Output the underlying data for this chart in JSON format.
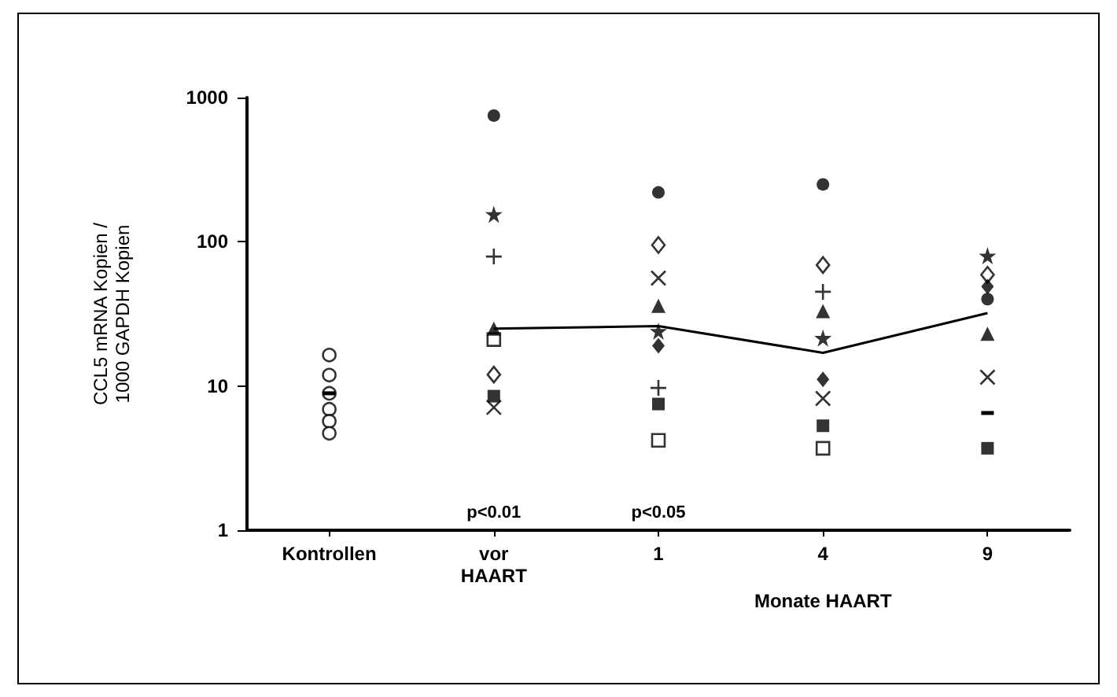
{
  "chart_data": {
    "type": "scatter",
    "ylabel": "CCL5 mRNA Kopien /\n1000 GAPDH Kopien",
    "xlabel": "Monate HAART",
    "categories": [
      "Kontrollen",
      "vor\nHAART",
      "1",
      "4",
      "9"
    ],
    "log": "y",
    "ylim": [
      1,
      1000
    ],
    "yticks": [
      1,
      10,
      100,
      1000
    ],
    "grid": false,
    "annotations": [
      "p<0.01",
      "p<0.05"
    ],
    "series": [
      {
        "color": "#ffffff",
        "marker": "circle",
        "values": [
          16.4,
          null,
          null,
          null,
          null
        ]
      },
      {
        "color": "#ffffff",
        "marker": "circle",
        "values": [
          11.9,
          null,
          null,
          null,
          null
        ]
      },
      {
        "color": "#ffffff",
        "marker": "circle",
        "values": [
          8.9,
          null,
          null,
          null,
          null
        ]
      },
      {
        "color": "#ffffff",
        "marker": "circle",
        "values": [
          6.9,
          null,
          null,
          null,
          null
        ]
      },
      {
        "color": "#ffffff",
        "marker": "circle",
        "values": [
          5.7,
          null,
          null,
          null,
          null
        ]
      },
      {
        "color": "#ffffff",
        "marker": "circle",
        "values": [
          4.7,
          null,
          null,
          null,
          null
        ]
      },
      {
        "color": "#000000",
        "marker": "circle",
        "values": [
          null,
          750,
          220,
          250,
          40
        ]
      },
      {
        "color": "#000000",
        "marker": "star",
        "values": [
          null,
          155,
          24,
          21.5,
          80
        ]
      },
      {
        "color": "#000000",
        "marker": "cross",
        "values": [
          null,
          79,
          9.7,
          45,
          null
        ]
      },
      {
        "color": "#000000",
        "marker": "triangle",
        "values": [
          null,
          25,
          36,
          33,
          23
        ]
      },
      {
        "color": "#ffffff",
        "marker": "square",
        "values": [
          null,
          21,
          4.2,
          3.7,
          null
        ]
      },
      {
        "color": "#ffffff",
        "marker": "diamond",
        "values": [
          null,
          12,
          95,
          69,
          59
        ]
      },
      {
        "color": "#000000",
        "marker": "square",
        "values": [
          null,
          8.5,
          7.5,
          5.3,
          3.7
        ]
      },
      {
        "color": "#000000",
        "values": [
          null,
          7.1,
          56,
          8.2,
          11.5
        ]
      },
      {
        "color": "#000000",
        "marker": "diamond",
        "values": [
          null,
          null,
          19,
          11.1,
          49
        ]
      },
      {
        "type": "line",
        "color": "#000000",
        "marker": "square",
        "values": [
          null,
          null,
          null,
          null,
          6.5
        ]
      },
      {
        "type": "line",
        "color": "#000000",
        "marker": "square",
        "values": [
          8.9,
          null,
          null,
          null,
          null
        ]
      },
      {
        "type": "line",
        "color": "#000000",
        "marker": "none",
        "values": [
          null,
          25,
          26,
          17,
          32
        ]
      }
    ]
  }
}
